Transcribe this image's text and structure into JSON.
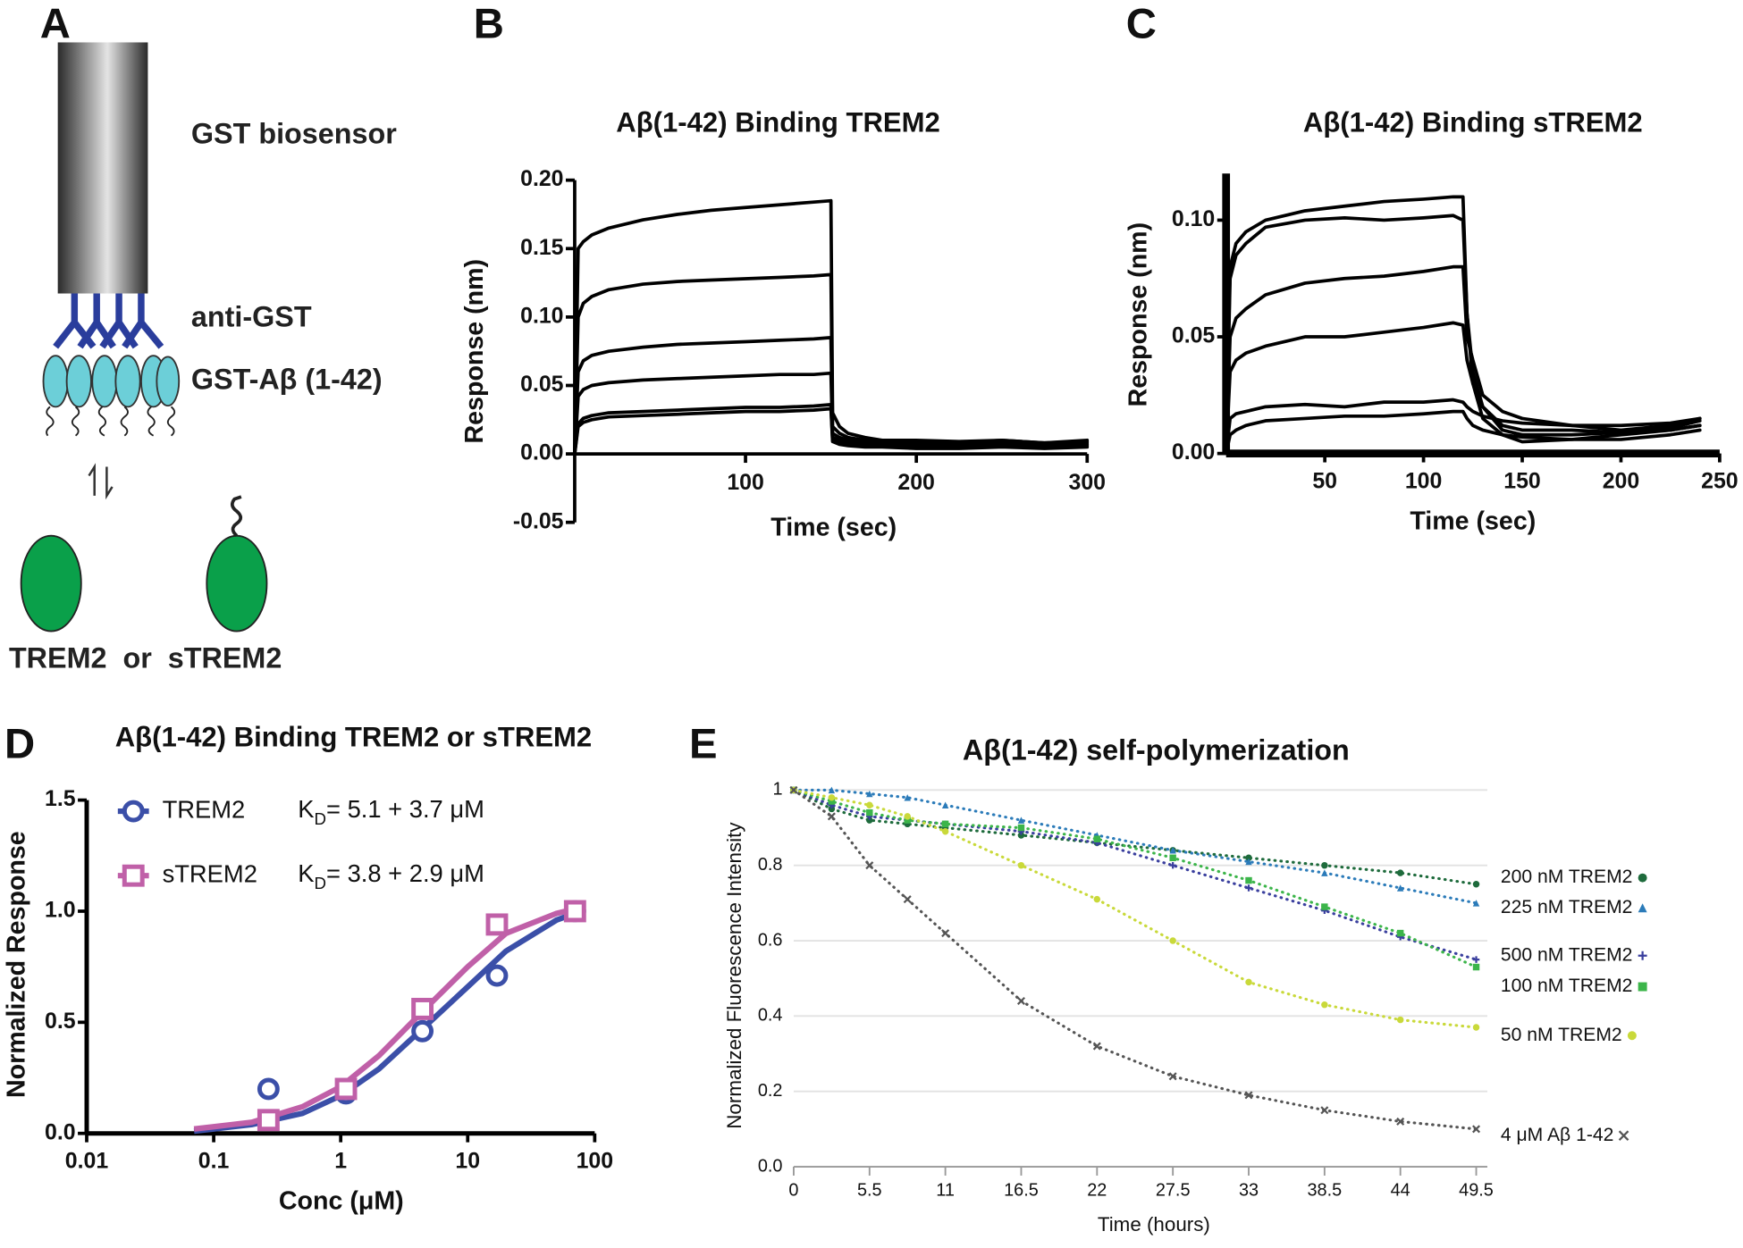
{
  "panel_labels": [
    "A",
    "B",
    "C",
    "D",
    "E"
  ],
  "diagram": {
    "sensor": "GST biosensor",
    "antibody": "anti-GST",
    "ligand": "GST-Aβ (1-42)",
    "analytes": "TREM2  or  sTREM2"
  },
  "chart_data": [
    {
      "type": "line",
      "title": "Aβ(1-42) Binding TREM2",
      "x_label": "Time (sec)",
      "y_label": "Response (nm)",
      "xlim": [
        0,
        300
      ],
      "ylim": [
        -0.05,
        0.2
      ],
      "xticks": [
        100,
        200,
        300
      ],
      "yticks": [
        {
          "value": -0.05,
          "label": "-0.05"
        },
        {
          "value": 0,
          "label": "0.00"
        },
        {
          "value": 0.05,
          "label": "0.05"
        },
        {
          "value": 0.1,
          "label": "0.10"
        },
        {
          "value": 0.15,
          "label": "0.15"
        },
        {
          "value": 0.2,
          "label": "0.20"
        }
      ],
      "x": [
        0,
        2,
        5,
        10,
        20,
        40,
        60,
        80,
        100,
        120,
        140,
        150,
        151,
        155,
        160,
        170,
        180,
        200,
        225,
        250,
        275,
        300
      ],
      "series": [
        {
          "color": "#000000",
          "values": [
            0,
            0.15,
            0.155,
            0.16,
            0.165,
            0.171,
            0.175,
            0.178,
            0.18,
            0.182,
            0.184,
            0.185,
            0.03,
            0.02,
            0.015,
            0.012,
            0.01,
            0.01,
            0.009,
            0.01,
            0.008,
            0.01
          ]
        },
        {
          "color": "#000000",
          "values": [
            0,
            0.1,
            0.11,
            0.115,
            0.12,
            0.124,
            0.126,
            0.127,
            0.128,
            0.129,
            0.13,
            0.131,
            0.02,
            0.015,
            0.012,
            0.01,
            0.01,
            0.009,
            0.008,
            0.01,
            0.008,
            0.009
          ]
        },
        {
          "color": "#000000",
          "values": [
            0,
            0.06,
            0.068,
            0.072,
            0.075,
            0.078,
            0.08,
            0.081,
            0.082,
            0.083,
            0.084,
            0.085,
            0.015,
            0.012,
            0.01,
            0.009,
            0.008,
            0.008,
            0.007,
            0.008,
            0.007,
            0.008
          ]
        },
        {
          "color": "#000000",
          "values": [
            0,
            0.042,
            0.047,
            0.05,
            0.052,
            0.054,
            0.055,
            0.056,
            0.057,
            0.058,
            0.058,
            0.059,
            0.012,
            0.01,
            0.009,
            0.008,
            0.007,
            0.007,
            0.006,
            0.007,
            0.006,
            0.007
          ]
        },
        {
          "color": "#000000",
          "values": [
            0,
            0.022,
            0.026,
            0.028,
            0.03,
            0.031,
            0.032,
            0.033,
            0.034,
            0.034,
            0.035,
            0.036,
            0.01,
            0.008,
            0.007,
            0.006,
            0.006,
            0.005,
            0.005,
            0.006,
            0.005,
            0.006
          ]
        },
        {
          "color": "#000000",
          "values": [
            0,
            0.02,
            0.023,
            0.025,
            0.027,
            0.028,
            0.029,
            0.03,
            0.031,
            0.031,
            0.032,
            0.033,
            0.009,
            0.007,
            0.006,
            0.005,
            0.005,
            0.004,
            0.004,
            0.005,
            0.004,
            0.005
          ]
        }
      ]
    },
    {
      "type": "line",
      "title": "Aβ(1-42) Binding sTREM2",
      "x_label": "Time (sec)",
      "y_label": "Response (nm)",
      "xlim": [
        0,
        250
      ],
      "ylim": [
        0,
        0.12
      ],
      "xticks": [
        50,
        100,
        150,
        200,
        250
      ],
      "yticks": [
        {
          "value": 0,
          "label": "0.00"
        },
        {
          "value": 0.05,
          "label": "0.05"
        },
        {
          "value": 0.1,
          "label": "0.10"
        }
      ],
      "x": [
        0,
        2,
        5,
        10,
        20,
        40,
        60,
        80,
        100,
        115,
        120,
        122,
        125,
        130,
        140,
        150,
        175,
        200,
        225,
        240
      ],
      "series": [
        {
          "color": "#000000",
          "values": [
            0,
            0.08,
            0.09,
            0.095,
            0.1,
            0.104,
            0.106,
            0.108,
            0.109,
            0.11,
            0.11,
            0.06,
            0.03,
            0.015,
            0.008,
            0.005,
            0.006,
            0.008,
            0.01,
            0.012
          ]
        },
        {
          "color": "#000000",
          "values": [
            0,
            0.075,
            0.085,
            0.09,
            0.097,
            0.1,
            0.101,
            0.1,
            0.101,
            0.102,
            0.1,
            0.06,
            0.035,
            0.02,
            0.01,
            0.008,
            0.008,
            0.009,
            0.011,
            0.014
          ]
        },
        {
          "color": "#000000",
          "values": [
            0,
            0.05,
            0.058,
            0.062,
            0.068,
            0.073,
            0.075,
            0.076,
            0.078,
            0.08,
            0.08,
            0.05,
            0.04,
            0.025,
            0.018,
            0.015,
            0.012,
            0.012,
            0.013,
            0.015
          ]
        },
        {
          "color": "#000000",
          "values": [
            0,
            0.035,
            0.04,
            0.043,
            0.046,
            0.05,
            0.05,
            0.052,
            0.054,
            0.056,
            0.055,
            0.04,
            0.03,
            0.02,
            0.012,
            0.01,
            0.01,
            0.009,
            0.01,
            0.012
          ]
        },
        {
          "color": "#000000",
          "values": [
            0,
            0.015,
            0.017,
            0.018,
            0.02,
            0.021,
            0.02,
            0.022,
            0.022,
            0.023,
            0.022,
            0.02,
            0.018,
            0.016,
            0.014,
            0.013,
            0.012,
            0.01,
            0.012,
            0.015
          ]
        },
        {
          "color": "#000000",
          "values": [
            0,
            0.008,
            0.01,
            0.012,
            0.014,
            0.015,
            0.016,
            0.016,
            0.017,
            0.018,
            0.018,
            0.015,
            0.012,
            0.01,
            0.008,
            0.007,
            0.006,
            0.006,
            0.008,
            0.01
          ]
        }
      ]
    },
    {
      "type": "scatter",
      "title": "Aβ(1-42) Binding TREM2 or sTREM2",
      "x_label": "Conc (μM)",
      "y_label": "Normalized Response",
      "x_scale": "log",
      "xlim": [
        0.01,
        100
      ],
      "ylim": [
        0,
        1.5
      ],
      "xticks": [
        0.01,
        0.1,
        1,
        10,
        100
      ],
      "yticks": [
        {
          "value": 0,
          "label": "0.0"
        },
        0.5,
        {
          "value": 1,
          "label": "1.0"
        },
        {
          "value": 1.5,
          "label": "1.5"
        }
      ],
      "x": [
        0.27,
        1.1,
        4.4,
        17,
        70
      ],
      "fit_x": [
        0.07,
        0.1,
        0.2,
        0.5,
        1,
        2,
        5,
        10,
        20,
        50,
        70
      ],
      "series": [
        {
          "name": "TREM2",
          "color": "#3b4fa8",
          "marker": "circle",
          "values": [
            0.2,
            0.18,
            0.46,
            0.71,
            1.0
          ],
          "fit_values": [
            0.01,
            0.02,
            0.04,
            0.09,
            0.17,
            0.29,
            0.5,
            0.66,
            0.82,
            0.96,
            0.99
          ],
          "kd_label": [
            "K",
            "D",
            "= 5.1 + 3.7 μM"
          ]
        },
        {
          "name": "sTREM2",
          "color": "#c060a8",
          "marker": "square",
          "values": [
            0.06,
            0.2,
            0.56,
            0.94,
            1.0
          ],
          "fit_values": [
            0.02,
            0.03,
            0.05,
            0.12,
            0.21,
            0.35,
            0.58,
            0.75,
            0.9,
            0.99,
            1.01
          ],
          "kd_label": [
            "K",
            "D",
            "= 3.8 + 2.9 μM"
          ]
        }
      ]
    },
    {
      "type": "line",
      "title": "Aβ(1-42) self-polymerization",
      "x_label": "Time (hours)",
      "y_label": "Normalized Fluorescence Intensity",
      "grid": true,
      "line_style": "dotted",
      "xlim": [
        0,
        49.5
      ],
      "ylim": [
        0,
        1.05
      ],
      "xticks": [
        0,
        5.5,
        11,
        16.5,
        22,
        27.5,
        33,
        38.5,
        44,
        49.5
      ],
      "yticks": [
        {
          "value": 0,
          "label": "0.0"
        },
        0.2,
        0.4,
        0.6,
        0.8,
        1
      ],
      "x": [
        0,
        2.75,
        5.5,
        8.25,
        11,
        16.5,
        22,
        27.5,
        33,
        38.5,
        44,
        49.5
      ],
      "series": [
        {
          "name": "200 nM TREM2",
          "color": "#1e6b3c",
          "marker": "circle",
          "values": [
            1,
            0.95,
            0.92,
            0.91,
            0.9,
            0.88,
            0.86,
            0.84,
            0.82,
            0.8,
            0.78,
            0.75
          ]
        },
        {
          "name": "225 nM TREM2",
          "color": "#2b7bb9",
          "marker": "triangle",
          "values": [
            1,
            1,
            0.99,
            0.98,
            0.96,
            0.92,
            0.88,
            0.84,
            0.81,
            0.78,
            0.74,
            0.7
          ]
        },
        {
          "name": "500 nM TREM2",
          "color": "#3a3f9e",
          "marker": "plus",
          "values": [
            1,
            0.96,
            0.93,
            0.92,
            0.91,
            0.89,
            0.86,
            0.8,
            0.74,
            0.68,
            0.61,
            0.55
          ]
        },
        {
          "name": "100 nM TREM2",
          "color": "#3cb54a",
          "marker": "square",
          "values": [
            1,
            0.97,
            0.94,
            0.92,
            0.91,
            0.9,
            0.87,
            0.82,
            0.76,
            0.69,
            0.62,
            0.53
          ]
        },
        {
          "name": "50 nM TREM2",
          "color": "#c9d93a",
          "marker": "circle",
          "values": [
            1,
            0.98,
            0.96,
            0.93,
            0.89,
            0.8,
            0.71,
            0.6,
            0.49,
            0.43,
            0.39,
            0.37
          ]
        },
        {
          "name": "4 μM Aβ 1-42",
          "color": "#555555",
          "marker": "x",
          "values": [
            1,
            0.93,
            0.8,
            0.71,
            0.62,
            0.44,
            0.32,
            0.24,
            0.19,
            0.15,
            0.12,
            0.1
          ]
        }
      ]
    }
  ]
}
